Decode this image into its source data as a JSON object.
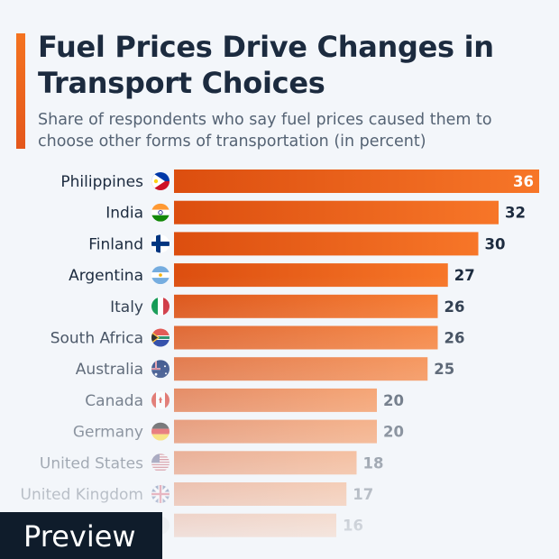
{
  "header": {
    "title": "Fuel Prices Drive Changes in Transport Choices",
    "subtitle": "Share of respondents who say fuel prices caused them to choose other forms of transportation (in percent)"
  },
  "badge": {
    "label": "Preview"
  },
  "colors": {
    "bar_start": "#dc4e0f",
    "bar_end": "#f77628",
    "accent": "#f47320"
  },
  "chart_data": {
    "type": "bar",
    "orientation": "horizontal",
    "title": "Fuel Prices Drive Changes in Transport Choices",
    "subtitle": "Share of respondents who say fuel prices caused them to choose other forms of transportation (in percent)",
    "categories": [
      "Philippines",
      "India",
      "Finland",
      "Argentina",
      "Italy",
      "South Africa",
      "Australia",
      "Canada",
      "Germany",
      "United States",
      "United Kingdom",
      ""
    ],
    "flags": [
      "philippines-flag-icon",
      "india-flag-icon",
      "finland-flag-icon",
      "argentina-flag-icon",
      "italy-flag-icon",
      "south-africa-flag-icon",
      "australia-flag-icon",
      "canada-flag-icon",
      "germany-flag-icon",
      "united-states-flag-icon",
      "united-kingdom-flag-icon",
      "flag-icon"
    ],
    "values": [
      36,
      32,
      30,
      27,
      26,
      26,
      25,
      20,
      20,
      18,
      17,
      16
    ],
    "xlim": [
      0,
      36
    ],
    "grid": false,
    "legend": "none"
  }
}
